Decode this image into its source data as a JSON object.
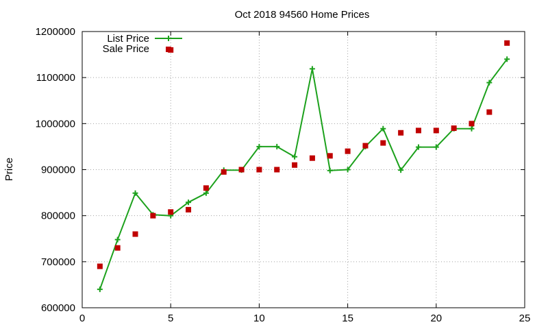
{
  "chart_data": {
    "type": "scatter",
    "title": "Oct 2018 94560 Home Prices",
    "xlabel": "",
    "ylabel": "Price",
    "xlim": [
      0,
      25
    ],
    "ylim": [
      600000,
      1200000
    ],
    "xticks": [
      0,
      5,
      10,
      15,
      20,
      25
    ],
    "yticks": [
      600000,
      700000,
      800000,
      900000,
      1000000,
      1100000,
      1200000
    ],
    "grid": true,
    "legend_position": "top-left",
    "series": [
      {
        "name": "List Price",
        "style": "line-with-plus-markers",
        "color": "#1ca11c",
        "x": [
          1,
          2,
          3,
          4,
          5,
          6,
          7,
          8,
          9,
          10,
          11,
          12,
          13,
          14,
          15,
          16,
          17,
          18,
          19,
          20,
          21,
          22,
          23,
          24
        ],
        "y": [
          640000,
          748000,
          849000,
          802000,
          800000,
          829000,
          849000,
          899000,
          899000,
          950000,
          950000,
          928000,
          1119000,
          898000,
          900000,
          950000,
          989000,
          899000,
          949000,
          949000,
          989000,
          989000,
          1089000,
          1140000
        ]
      },
      {
        "name": "Sale Price",
        "style": "square-markers",
        "color": "#c00000",
        "x": [
          1,
          2,
          3,
          4,
          5,
          5,
          6,
          7,
          8,
          9,
          10,
          11,
          12,
          13,
          14,
          15,
          16,
          17,
          18,
          19,
          20,
          21,
          22,
          23,
          24
        ],
        "y": [
          690000,
          730000,
          760000,
          800000,
          1160000,
          808000,
          813000,
          860000,
          895000,
          900000,
          900000,
          900000,
          910000,
          925000,
          930000,
          940000,
          952000,
          958000,
          980000,
          985000,
          985000,
          990000,
          1000000,
          1025000,
          1175000
        ]
      }
    ]
  }
}
